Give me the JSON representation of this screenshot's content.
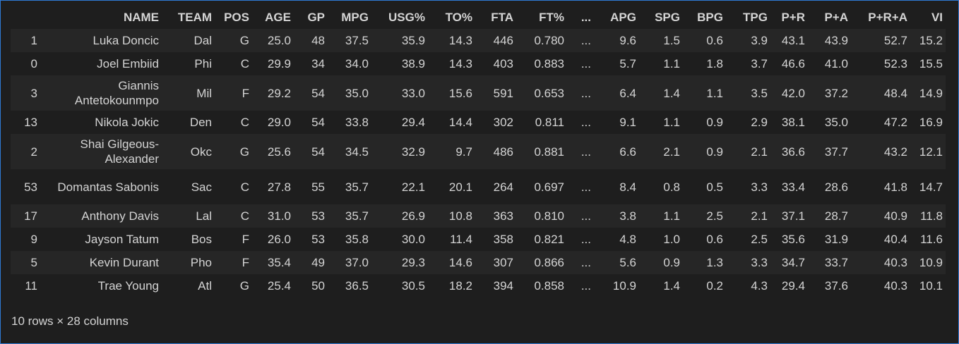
{
  "columns": [
    "",
    "NAME",
    "TEAM",
    "POS",
    "AGE",
    "GP",
    "MPG",
    "USG%",
    "TO%",
    "FTA",
    "FT%",
    "...",
    "APG",
    "SPG",
    "BPG",
    "TPG",
    "P+R",
    "P+A",
    "P+R+A",
    "VI"
  ],
  "rows": [
    [
      "1",
      "Luka Doncic",
      "Dal",
      "G",
      "25.0",
      "48",
      "37.5",
      "35.9",
      "14.3",
      "446",
      "0.780",
      "...",
      "9.6",
      "1.5",
      "0.6",
      "3.9",
      "43.1",
      "43.9",
      "52.7",
      "15.2"
    ],
    [
      "0",
      "Joel Embiid",
      "Phi",
      "C",
      "29.9",
      "34",
      "34.0",
      "38.9",
      "14.3",
      "403",
      "0.883",
      "...",
      "5.7",
      "1.1",
      "1.8",
      "3.7",
      "46.6",
      "41.0",
      "52.3",
      "15.5"
    ],
    [
      "3",
      "Giannis Antetokounmpo",
      "Mil",
      "F",
      "29.2",
      "54",
      "35.0",
      "33.0",
      "15.6",
      "591",
      "0.653",
      "...",
      "6.4",
      "1.4",
      "1.1",
      "3.5",
      "42.0",
      "37.2",
      "48.4",
      "14.9"
    ],
    [
      "13",
      "Nikola Jokic",
      "Den",
      "C",
      "29.0",
      "54",
      "33.8",
      "29.4",
      "14.4",
      "302",
      "0.811",
      "...",
      "9.1",
      "1.1",
      "0.9",
      "2.9",
      "38.1",
      "35.0",
      "47.2",
      "16.9"
    ],
    [
      "2",
      "Shai Gilgeous-Alexander",
      "Okc",
      "G",
      "25.6",
      "54",
      "34.5",
      "32.9",
      "9.7",
      "486",
      "0.881",
      "...",
      "6.6",
      "2.1",
      "0.9",
      "2.1",
      "36.6",
      "37.7",
      "43.2",
      "12.1"
    ],
    [
      "53",
      "Domantas Sabonis",
      "Sac",
      "C",
      "27.8",
      "55",
      "35.7",
      "22.1",
      "20.1",
      "264",
      "0.697",
      "...",
      "8.4",
      "0.8",
      "0.5",
      "3.3",
      "33.4",
      "28.6",
      "41.8",
      "14.7"
    ],
    [
      "17",
      "Anthony Davis",
      "Lal",
      "C",
      "31.0",
      "53",
      "35.7",
      "26.9",
      "10.8",
      "363",
      "0.810",
      "...",
      "3.8",
      "1.1",
      "2.5",
      "2.1",
      "37.1",
      "28.7",
      "40.9",
      "11.8"
    ],
    [
      "9",
      "Jayson Tatum",
      "Bos",
      "F",
      "26.0",
      "53",
      "35.8",
      "30.0",
      "11.4",
      "358",
      "0.821",
      "...",
      "4.8",
      "1.0",
      "0.6",
      "2.5",
      "35.6",
      "31.9",
      "40.4",
      "11.6"
    ],
    [
      "5",
      "Kevin Durant",
      "Pho",
      "F",
      "35.4",
      "49",
      "37.0",
      "29.3",
      "14.6",
      "307",
      "0.866",
      "...",
      "5.6",
      "0.9",
      "1.3",
      "3.3",
      "34.7",
      "33.7",
      "40.3",
      "10.9"
    ],
    [
      "11",
      "Trae Young",
      "Atl",
      "G",
      "25.4",
      "50",
      "36.5",
      "30.5",
      "18.2",
      "394",
      "0.858",
      "...",
      "10.9",
      "1.4",
      "0.2",
      "4.3",
      "29.4",
      "37.6",
      "40.3",
      "10.1"
    ]
  ],
  "footer": "10 rows × 28 columns"
}
